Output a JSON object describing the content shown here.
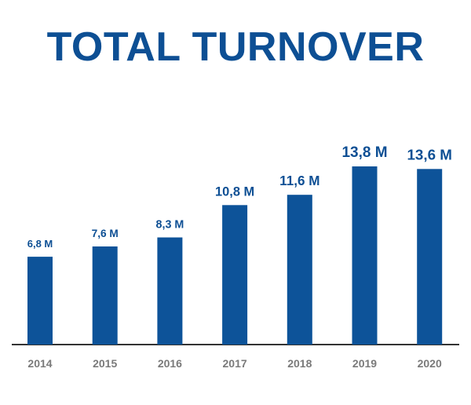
{
  "chart_data": {
    "type": "bar",
    "title": "TOTAL TURNOVER",
    "categories": [
      "2014",
      "2015",
      "2016",
      "2017",
      "2018",
      "2019",
      "2020"
    ],
    "values": [
      6.8,
      7.6,
      8.3,
      10.8,
      11.6,
      13.8,
      13.6
    ],
    "data_labels": [
      "6,8 M",
      "7,6 M",
      "8,3 M",
      "10,8 M",
      "11,6 M",
      "13,8 M",
      "13,6 M"
    ],
    "ylim": [
      0,
      13.8
    ],
    "xlabel": "",
    "ylabel": "",
    "grid": false,
    "colors": {
      "bar": "#0d5399",
      "title": "#0d4f94",
      "tick": "#7a7a7a"
    }
  }
}
